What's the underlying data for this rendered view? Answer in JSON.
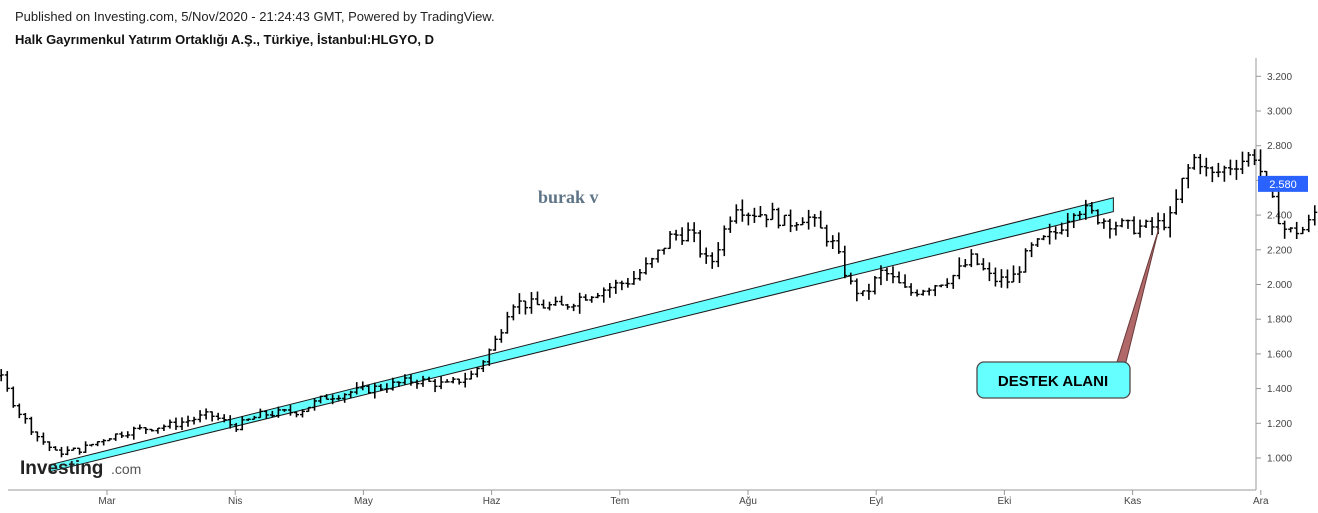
{
  "header": {
    "published": "Published on Investing.com, 5/Nov/2020 - 21:24:43 GMT, Powered by TradingView.",
    "title": "Halk Gayrımenkul Yatırım Ortaklığı A.Ş., Türkiye, İstanbul:HLGYO, D"
  },
  "logo": {
    "main": "Investing",
    "suffix": ".com"
  },
  "colors": {
    "bars": "#000000",
    "channel_fill": "#66ffff",
    "callout_fill": "#66ffff",
    "price_label_bg": "#2962ff",
    "annotation_text": "#5f7587"
  },
  "chart_data": {
    "type": "ohlc-bar",
    "title": "",
    "xlabel": "",
    "ylabel": "",
    "ylim": [
      0.85,
      3.28
    ],
    "y_ticks": [
      "1.000",
      "1.200",
      "1.400",
      "1.600",
      "1.800",
      "2.000",
      "2.200",
      "2.400",
      "2.600",
      "2.800",
      "3.000",
      "3.200"
    ],
    "x_ticks": [
      "Mar",
      "Nis",
      "May",
      "Haz",
      "Tem",
      "Ağu",
      "Eyl",
      "Eki",
      "Kas",
      "Ara"
    ],
    "last_price": "2.580",
    "annotation_text": "burak v",
    "callout_text": "DESTEK ALANI",
    "support_channel": {
      "upper": [
        {
          "month": 2.55,
          "price": 0.96
        },
        {
          "month": 10.85,
          "price": 2.5
        }
      ],
      "lower": [
        {
          "month": 2.55,
          "price": 0.92
        },
        {
          "month": 10.85,
          "price": 2.42
        }
      ]
    },
    "close_series_by_month": [
      [
        1.0,
        1.57
      ],
      [
        1.2,
        1.53
      ],
      [
        1.45,
        1.45
      ],
      [
        1.65,
        1.43
      ],
      [
        1.75,
        1.37
      ],
      [
        1.95,
        1.45
      ],
      [
        2.15,
        1.49
      ],
      [
        2.3,
        1.28
      ],
      [
        2.45,
        1.13
      ],
      [
        2.6,
        1.03
      ],
      [
        2.8,
        1.05
      ],
      [
        3.0,
        1.12
      ],
      [
        3.2,
        1.16
      ],
      [
        3.5,
        1.19
      ],
      [
        3.8,
        1.25
      ],
      [
        4.0,
        1.18
      ],
      [
        4.2,
        1.25
      ],
      [
        4.5,
        1.27
      ],
      [
        4.7,
        1.35
      ],
      [
        4.9,
        1.38
      ],
      [
        5.15,
        1.41
      ],
      [
        5.4,
        1.45
      ],
      [
        5.65,
        1.42
      ],
      [
        5.85,
        1.48
      ],
      [
        5.95,
        1.58
      ],
      [
        6.05,
        1.7
      ],
      [
        6.15,
        1.9
      ],
      [
        6.35,
        1.88
      ],
      [
        6.55,
        1.87
      ],
      [
        6.7,
        1.93
      ],
      [
        6.9,
        1.98
      ],
      [
        7.1,
        2.03
      ],
      [
        7.25,
        2.13
      ],
      [
        7.4,
        2.28
      ],
      [
        7.55,
        2.3
      ],
      [
        7.7,
        2.1
      ],
      [
        7.9,
        2.47
      ],
      [
        8.0,
        2.42
      ],
      [
        8.2,
        2.4
      ],
      [
        8.3,
        2.35
      ],
      [
        8.45,
        2.4
      ],
      [
        8.65,
        2.25
      ],
      [
        8.8,
        2.0
      ],
      [
        8.9,
        1.93
      ],
      [
        9.05,
        2.08
      ],
      [
        9.25,
        1.95
      ],
      [
        9.45,
        2.0
      ],
      [
        9.6,
        2.05
      ],
      [
        9.75,
        2.15
      ],
      [
        9.9,
        2.03
      ],
      [
        10.05,
        2.02
      ],
      [
        10.2,
        2.2
      ],
      [
        10.4,
        2.3
      ],
      [
        10.55,
        2.45
      ],
      [
        10.75,
        2.38
      ],
      [
        10.95,
        2.33
      ],
      [
        11.15,
        2.33
      ],
      [
        11.3,
        2.38
      ],
      [
        11.4,
        2.62
      ],
      [
        11.5,
        2.75
      ],
      [
        11.6,
        2.62
      ],
      [
        11.8,
        2.7
      ],
      [
        11.95,
        2.75
      ],
      [
        12.0,
        2.65
      ],
      [
        12.1,
        2.45
      ],
      [
        12.2,
        2.3
      ],
      [
        12.35,
        2.32
      ],
      [
        12.45,
        2.45
      ],
      [
        12.55,
        2.58
      ]
    ]
  }
}
